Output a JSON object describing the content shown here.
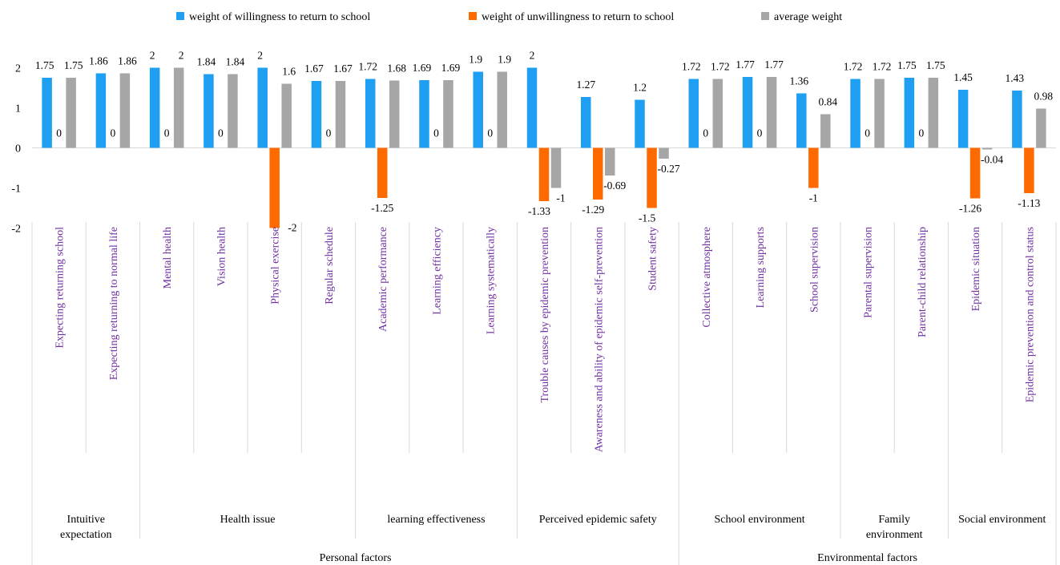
{
  "chart_data": {
    "type": "bar",
    "series": [
      {
        "name": "weight of willingness to return to school",
        "color": "#1E9FF2",
        "values": [
          1.75,
          1.86,
          2,
          1.84,
          2,
          1.67,
          1.72,
          1.69,
          1.9,
          2,
          1.27,
          1.2,
          1.72,
          1.77,
          1.36,
          1.72,
          1.75,
          1.45,
          1.43
        ]
      },
      {
        "name": "weight of unwillingness to return to school",
        "color": "#FF6A00",
        "values": [
          0,
          0,
          0,
          0,
          -2,
          0,
          -1.25,
          0,
          0,
          -1.33,
          -1.29,
          -1.5,
          0,
          0,
          -1,
          0,
          0,
          -1.26,
          -1.13
        ]
      },
      {
        "name": "average weight",
        "color": "#A6A6A6",
        "values": [
          1.75,
          1.86,
          2,
          1.84,
          1.6,
          1.67,
          1.68,
          1.69,
          1.9,
          -1,
          -0.69,
          -0.27,
          1.72,
          1.77,
          0.84,
          1.72,
          1.75,
          -0.04,
          0.98
        ]
      }
    ],
    "categories": [
      "Expecting returning school",
      "Expecting returning to normal life",
      "Mental health",
      "Vision health",
      "Physical exercise",
      "Regular schedule",
      "Academic performance",
      "Learning efficiency",
      "Learning systematically",
      "Trouble causes by epidemic prevention",
      "Awareness and ability of epidemic self-prevention",
      "Student safety",
      "Collective atmosphere",
      "Learning supports",
      "School supervision",
      "Parental supervision",
      "Parent-child relationship",
      "Epidemic situation",
      "Epidemic prevention and control status"
    ],
    "data_labels": [
      [
        "1.75",
        "1.86",
        "2",
        "1.84",
        "2",
        "1.67",
        "1.72",
        "1.69",
        "1.9",
        "2",
        "1.27",
        "1.2",
        "1.72",
        "1.77",
        "1.36",
        "1.72",
        "1.75",
        "1.45",
        "1.43"
      ],
      [
        "0",
        "0",
        "0",
        "0",
        "-2",
        "0",
        "-1.25",
        "0",
        "0",
        "-1.33",
        "-1.29",
        "-1.5",
        "0",
        "0",
        "-1",
        "0",
        "0",
        "-1.26",
        "-1.13"
      ],
      [
        "1.75",
        "1.86",
        "2",
        "1.84",
        "1.6",
        "1.67",
        "1.68",
        "1.69",
        "1.9",
        "-1",
        "-0.69",
        "-0.27",
        "1.72",
        "1.77",
        "0.84",
        "1.72",
        "1.75",
        "-0.04",
        "0.98"
      ]
    ],
    "groups": [
      {
        "label": "Intuitive expectation",
        "lines": [
          "Intuitive",
          "expectation"
        ],
        "count": 2
      },
      {
        "label": "Health issue",
        "lines": [
          "Health issue"
        ],
        "count": 4
      },
      {
        "label": "learning effectiveness",
        "lines": [
          "learning effectiveness"
        ],
        "count": 3
      },
      {
        "label": "Perceived epidemic safety",
        "lines": [
          "Perceived epidemic safety"
        ],
        "count": 3
      },
      {
        "label": "School environment",
        "lines": [
          "School environment"
        ],
        "count": 3
      },
      {
        "label": "Family environment",
        "lines": [
          "Family",
          "environment"
        ],
        "count": 2
      },
      {
        "label": "Social environment",
        "lines": [
          "Social environment"
        ],
        "count": 2
      }
    ],
    "supergroups": [
      {
        "label": "Personal factors",
        "count": 12
      },
      {
        "label": "Environmental factors",
        "count": 7
      }
    ],
    "yticks": [
      "2",
      "1",
      "0",
      "-1",
      "-2"
    ],
    "ylim": [
      -2,
      2
    ],
    "xlabel": "",
    "ylabel": "",
    "grid": false,
    "legend_position": "top"
  }
}
